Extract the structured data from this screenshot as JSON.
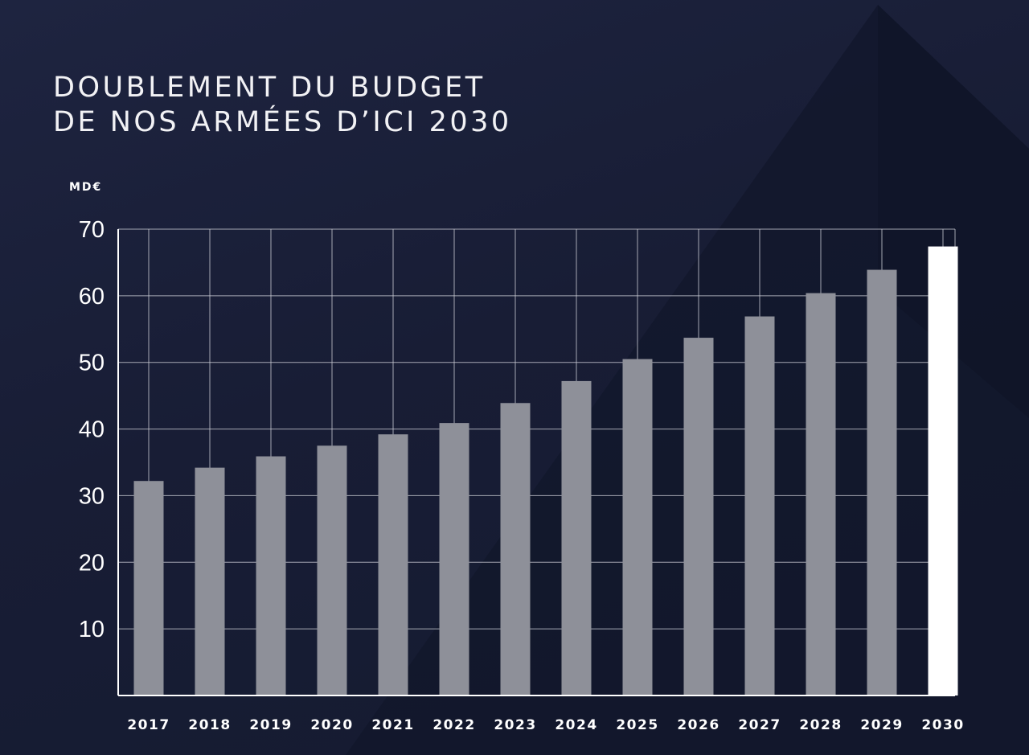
{
  "title": {
    "line1": "DOUBLEMENT DU BUDGET",
    "line2": "DE NOS ARMÉES D’ICI 2030"
  },
  "colors": {
    "background": "#181d33",
    "bar": "#8e9099",
    "bar_highlight": "#ffffff",
    "grid": "#c9cbd3",
    "text": "#ffffff"
  },
  "chart_data": {
    "type": "bar",
    "unit": "MD€",
    "categories": [
      "2017",
      "2018",
      "2019",
      "2020",
      "2021",
      "2022",
      "2023",
      "2024",
      "2025",
      "2026",
      "2027",
      "2028",
      "2029",
      "2030"
    ],
    "values": [
      32.2,
      34.2,
      35.9,
      37.5,
      39.2,
      40.9,
      43.9,
      47.2,
      50.5,
      53.7,
      56.9,
      60.4,
      63.9,
      67.4
    ],
    "highlight": "2030",
    "ylim": [
      0,
      70
    ],
    "yticks": [
      10,
      20,
      30,
      40,
      50,
      60,
      70
    ],
    "grid": true,
    "legend": "none"
  }
}
